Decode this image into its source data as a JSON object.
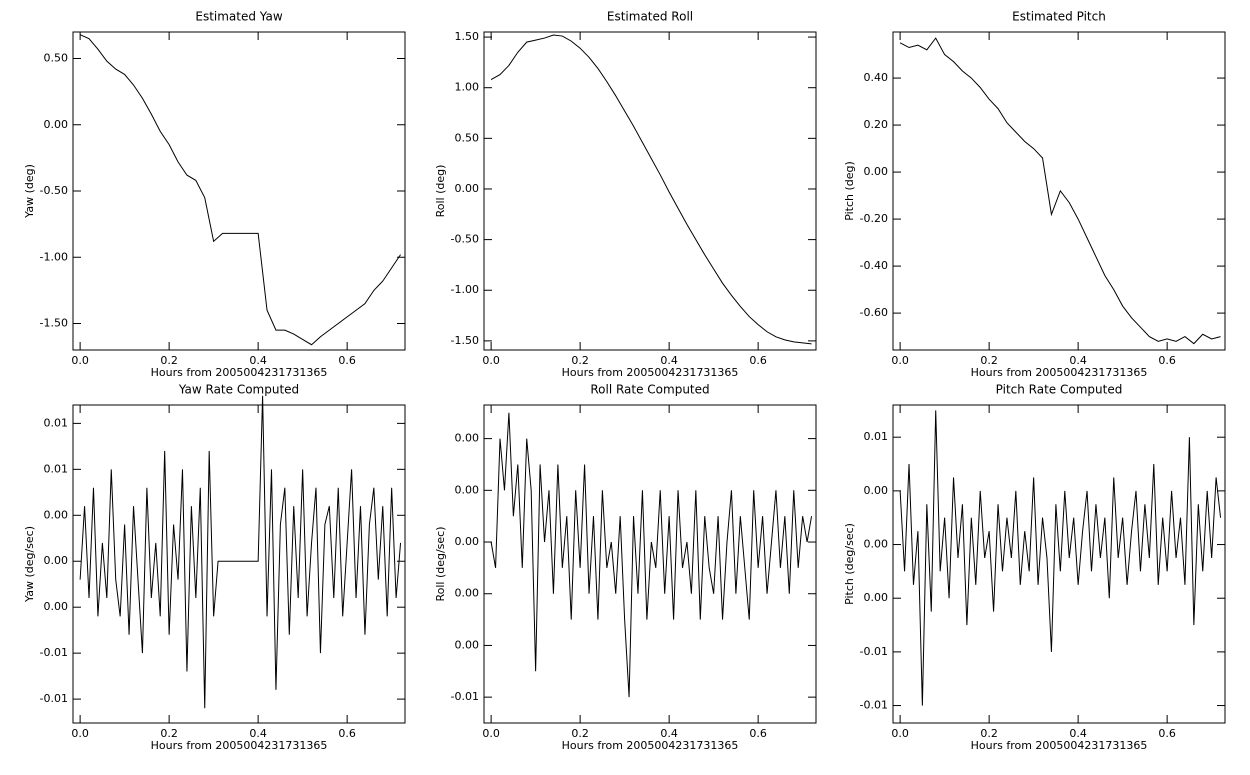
{
  "chart_data": [
    {
      "type": "line",
      "title": "Estimated Yaw",
      "x_label": "Hours from 2005004231731365",
      "y_label": "Yaw (deg)",
      "color": "#000000",
      "x": [
        0,
        0.02,
        0.04,
        0.06,
        0.08,
        0.1,
        0.12,
        0.14,
        0.16,
        0.18,
        0.2,
        0.22,
        0.24,
        0.26,
        0.28,
        0.3,
        0.32,
        0.34,
        0.36,
        0.38,
        0.4,
        0.42,
        0.44,
        0.46,
        0.48,
        0.5,
        0.52,
        0.54,
        0.56,
        0.58,
        0.6,
        0.62,
        0.64,
        0.66,
        0.68,
        0.7,
        0.72
      ],
      "values": [
        0.68,
        0.65,
        0.57,
        0.48,
        0.42,
        0.38,
        0.3,
        0.2,
        0.08,
        -0.05,
        -0.15,
        -0.28,
        -0.38,
        -0.42,
        -0.55,
        -0.88,
        -0.82,
        -0.82,
        -0.82,
        -0.82,
        -0.82,
        -1.4,
        -1.55,
        -1.55,
        -1.58,
        -1.62,
        -1.66,
        -1.6,
        -1.55,
        -1.5,
        -1.45,
        -1.4,
        -1.35,
        -1.25,
        -1.18,
        -1.08,
        -0.98
      ],
      "xlim": [
        -0.016,
        0.73
      ],
      "xticks": [
        {
          "value": 0,
          "label": "0.0"
        },
        0.2,
        0.4,
        0.6
      ],
      "ylim": [
        -1.7,
        0.7
      ],
      "yticks": [
        {
          "value": -1.5,
          "label": "-1.50"
        },
        {
          "value": -1,
          "label": "-1.00"
        },
        {
          "value": -0.5,
          "label": "-0.50"
        },
        {
          "value": 0,
          "label": "0.00"
        },
        {
          "value": 0.5,
          "label": "0.50"
        }
      ]
    },
    {
      "type": "line",
      "title": "Estimated Roll",
      "x_label": "Hours from 2005004231731365",
      "y_label": "Roll (deg)",
      "color": "#000000",
      "x": [
        0,
        0.02,
        0.04,
        0.06,
        0.08,
        0.1,
        0.12,
        0.14,
        0.16,
        0.18,
        0.2,
        0.22,
        0.24,
        0.26,
        0.28,
        0.3,
        0.32,
        0.34,
        0.36,
        0.38,
        0.4,
        0.42,
        0.44,
        0.46,
        0.48,
        0.5,
        0.52,
        0.54,
        0.56,
        0.58,
        0.6,
        0.62,
        0.64,
        0.66,
        0.68,
        0.7,
        0.72
      ],
      "values": [
        1.08,
        1.13,
        1.22,
        1.35,
        1.45,
        1.47,
        1.49,
        1.52,
        1.51,
        1.46,
        1.39,
        1.3,
        1.19,
        1.06,
        0.92,
        0.77,
        0.62,
        0.46,
        0.3,
        0.14,
        -0.03,
        -0.19,
        -0.35,
        -0.5,
        -0.65,
        -0.79,
        -0.93,
        -1.05,
        -1.16,
        -1.26,
        -1.34,
        -1.41,
        -1.46,
        -1.49,
        -1.51,
        -1.52,
        -1.53
      ],
      "xlim": [
        -0.016,
        0.73
      ],
      "xticks": [
        {
          "value": 0,
          "label": "0.0"
        },
        0.2,
        0.4,
        0.6
      ],
      "ylim": [
        -1.59,
        1.55
      ],
      "yticks": [
        {
          "value": -1.5,
          "label": "-1.50"
        },
        {
          "value": -1,
          "label": "-1.00"
        },
        {
          "value": -0.5,
          "label": "-0.50"
        },
        {
          "value": 0,
          "label": "0.00"
        },
        {
          "value": 0.5,
          "label": "0.50"
        },
        {
          "value": 1,
          "label": "1.00"
        },
        {
          "value": 1.5,
          "label": "1.50"
        }
      ]
    },
    {
      "type": "line",
      "title": "Estimated Pitch",
      "x_label": "Hours from 2005004231731365",
      "y_label": "Pitch (deg)",
      "color": "#000000",
      "x": [
        0,
        0.02,
        0.04,
        0.06,
        0.08,
        0.1,
        0.12,
        0.14,
        0.16,
        0.18,
        0.2,
        0.22,
        0.24,
        0.26,
        0.28,
        0.3,
        0.32,
        0.34,
        0.36,
        0.38,
        0.4,
        0.42,
        0.44,
        0.46,
        0.48,
        0.5,
        0.52,
        0.54,
        0.56,
        0.58,
        0.6,
        0.62,
        0.64,
        0.66,
        0.68,
        0.7,
        0.72
      ],
      "values": [
        0.55,
        0.53,
        0.54,
        0.52,
        0.57,
        0.5,
        0.47,
        0.43,
        0.4,
        0.36,
        0.31,
        0.27,
        0.21,
        0.17,
        0.13,
        0.1,
        0.06,
        -0.18,
        -0.08,
        -0.13,
        -0.2,
        -0.28,
        -0.36,
        -0.44,
        -0.5,
        -0.57,
        -0.62,
        -0.66,
        -0.7,
        -0.72,
        -0.71,
        -0.72,
        -0.7,
        -0.73,
        -0.69,
        -0.71,
        -0.7
      ],
      "xlim": [
        -0.016,
        0.73
      ],
      "xticks": [
        {
          "value": 0,
          "label": "0.0"
        },
        0.2,
        0.4,
        0.6
      ],
      "ylim": [
        -0.757,
        0.596
      ],
      "yticks": [
        {
          "value": -0.6,
          "label": "-0.60"
        },
        {
          "value": -0.4,
          "label": "-0.40"
        },
        {
          "value": -0.2,
          "label": "-0.20"
        },
        {
          "value": 0,
          "label": "0.00"
        },
        {
          "value": 0.2,
          "label": "0.20"
        },
        {
          "value": 0.4,
          "label": "0.40"
        }
      ]
    },
    {
      "type": "line",
      "title": "Yaw Rate Computed",
      "x_label": "Hours from 2005004231731365",
      "y_label": "Yaw (deg/sec)",
      "color": "#000000",
      "x": [
        0,
        0.01,
        0.02,
        0.03,
        0.04,
        0.05,
        0.06,
        0.07,
        0.08,
        0.09,
        0.1,
        0.11,
        0.12,
        0.13,
        0.14,
        0.15,
        0.16,
        0.17,
        0.18,
        0.19,
        0.2,
        0.21,
        0.22,
        0.23,
        0.24,
        0.25,
        0.26,
        0.27,
        0.28,
        0.29,
        0.3,
        0.31,
        0.32,
        0.33,
        0.34,
        0.35,
        0.36,
        0.37,
        0.38,
        0.39,
        0.4,
        0.41,
        0.42,
        0.43,
        0.44,
        0.45,
        0.46,
        0.47,
        0.48,
        0.49,
        0.5,
        0.51,
        0.52,
        0.53,
        0.54,
        0.55,
        0.56,
        0.57,
        0.58,
        0.59,
        0.6,
        0.61,
        0.62,
        0.63,
        0.64,
        0.65,
        0.66,
        0.67,
        0.68,
        0.69,
        0.7,
        0.71,
        0.72
      ],
      "values": [
        -0.001,
        0.003,
        -0.002,
        0.004,
        -0.003,
        0.001,
        -0.002,
        0.005,
        -0.001,
        -0.003,
        0.002,
        -0.004,
        0.003,
        -0.001,
        -0.005,
        0.004,
        -0.002,
        0.001,
        -0.003,
        0.006,
        -0.004,
        0.002,
        -0.001,
        0.005,
        -0.006,
        0.003,
        -0.002,
        0.004,
        -0.008,
        0.006,
        -0.003,
        0,
        0,
        0,
        0,
        0,
        0,
        0,
        0,
        0,
        0,
        0.009,
        -0.003,
        0.005,
        -0.007,
        0.002,
        0.004,
        -0.004,
        0.003,
        -0.002,
        0.005,
        -0.003,
        0.001,
        0.004,
        -0.005,
        0.002,
        0.003,
        -0.002,
        0.004,
        -0.003,
        0.001,
        0.005,
        -0.002,
        0.003,
        -0.004,
        0.002,
        0.004,
        -0.001,
        0.003,
        -0.003,
        0.004,
        -0.002,
        0.001
      ],
      "xlim": [
        -0.016,
        0.73
      ],
      "xticks": [
        {
          "value": 0,
          "label": "0.0"
        },
        0.2,
        0.4,
        0.6
      ],
      "ylim": [
        -0.0088,
        0.0085
      ],
      "yticks": [
        {
          "value": -0.0075,
          "label": "-0.01"
        },
        {
          "value": -0.005,
          "label": "-0.01"
        },
        {
          "value": -0.0025,
          "label": "0.00"
        },
        {
          "value": 0,
          "label": "0.00"
        },
        {
          "value": 0.0025,
          "label": "0.00"
        },
        {
          "value": 0.005,
          "label": "0.01"
        },
        {
          "value": 0.0075,
          "label": "0.01"
        }
      ]
    },
    {
      "type": "line",
      "title": "Roll Rate Computed",
      "x_label": "Hours from 2005004231731365",
      "y_label": "Roll (deg/sec)",
      "color": "#000000",
      "x": [
        0,
        0.01,
        0.02,
        0.03,
        0.04,
        0.05,
        0.06,
        0.07,
        0.08,
        0.09,
        0.1,
        0.11,
        0.12,
        0.13,
        0.14,
        0.15,
        0.16,
        0.17,
        0.18,
        0.19,
        0.2,
        0.21,
        0.22,
        0.23,
        0.24,
        0.25,
        0.26,
        0.27,
        0.28,
        0.29,
        0.3,
        0.31,
        0.32,
        0.33,
        0.34,
        0.35,
        0.36,
        0.37,
        0.38,
        0.39,
        0.4,
        0.41,
        0.42,
        0.43,
        0.44,
        0.45,
        0.46,
        0.47,
        0.48,
        0.49,
        0.5,
        0.51,
        0.52,
        0.53,
        0.54,
        0.55,
        0.56,
        0.57,
        0.58,
        0.59,
        0.6,
        0.61,
        0.62,
        0.63,
        0.64,
        0.65,
        0.66,
        0.67,
        0.68,
        0.69,
        0.7,
        0.71,
        0.72
      ],
      "values": [
        0,
        -0.001,
        0.004,
        0.002,
        0.005,
        0.001,
        0.003,
        -0.001,
        0.004,
        0.002,
        -0.005,
        0.003,
        0,
        0.002,
        -0.002,
        0.003,
        -0.001,
        0.001,
        -0.003,
        0.002,
        -0.001,
        0.003,
        -0.002,
        0.001,
        -0.003,
        0.002,
        -0.001,
        0,
        -0.002,
        0.001,
        -0.003,
        -0.006,
        0.001,
        -0.002,
        0.002,
        -0.003,
        0,
        -0.001,
        0.002,
        -0.002,
        0.001,
        -0.003,
        0.002,
        -0.001,
        0,
        -0.002,
        0.002,
        -0.003,
        0.001,
        -0.001,
        -0.002,
        0.001,
        -0.003,
        0,
        0.002,
        -0.002,
        0.001,
        -0.001,
        -0.003,
        0.002,
        -0.001,
        0.001,
        -0.002,
        0,
        0.002,
        -0.001,
        0.001,
        -0.002,
        0.002,
        -0.001,
        0.001,
        0,
        0.001
      ],
      "xlim": [
        -0.016,
        0.73
      ],
      "xticks": [
        {
          "value": 0,
          "label": "0.0"
        },
        0.2,
        0.4,
        0.6
      ],
      "ylim": [
        -0.007,
        0.0053
      ],
      "yticks": [
        {
          "value": -0.006,
          "label": "-0.01"
        },
        {
          "value": -0.004,
          "label": "0.00"
        },
        {
          "value": -0.002,
          "label": "0.00"
        },
        {
          "value": 0,
          "label": "0.00"
        },
        {
          "value": 0.002,
          "label": "0.00"
        },
        {
          "value": 0.004,
          "label": "0.00"
        }
      ]
    },
    {
      "type": "line",
      "title": "Pitch Rate Computed",
      "x_label": "Hours from 2005004231731365",
      "y_label": "Pitch (deg/sec)",
      "color": "#000000",
      "x": [
        0,
        0.01,
        0.02,
        0.03,
        0.04,
        0.05,
        0.06,
        0.07,
        0.08,
        0.09,
        0.1,
        0.11,
        0.12,
        0.13,
        0.14,
        0.15,
        0.16,
        0.17,
        0.18,
        0.19,
        0.2,
        0.21,
        0.22,
        0.23,
        0.24,
        0.25,
        0.26,
        0.27,
        0.28,
        0.29,
        0.3,
        0.31,
        0.32,
        0.33,
        0.34,
        0.35,
        0.36,
        0.37,
        0.38,
        0.39,
        0.4,
        0.41,
        0.42,
        0.43,
        0.44,
        0.45,
        0.46,
        0.47,
        0.48,
        0.49,
        0.5,
        0.51,
        0.52,
        0.53,
        0.54,
        0.55,
        0.56,
        0.57,
        0.58,
        0.59,
        0.6,
        0.61,
        0.62,
        0.63,
        0.64,
        0.65,
        0.66,
        0.67,
        0.68,
        0.69,
        0.7,
        0.71,
        0.72
      ],
      "values": [
        0.004,
        -0.002,
        0.006,
        -0.003,
        0.001,
        -0.012,
        0.003,
        -0.005,
        0.01,
        -0.002,
        0.002,
        -0.004,
        0.005,
        -0.001,
        0.003,
        -0.006,
        0.002,
        -0.003,
        0.004,
        -0.001,
        0.001,
        -0.005,
        0.003,
        -0.002,
        0.002,
        -0.001,
        0.004,
        -0.003,
        0.001,
        -0.002,
        0.005,
        -0.003,
        0.002,
        -0.001,
        -0.008,
        0.003,
        -0.002,
        0.004,
        -0.001,
        0.002,
        -0.003,
        0.001,
        0.004,
        -0.002,
        0.003,
        -0.001,
        0.002,
        -0.004,
        0.005,
        -0.001,
        0.002,
        -0.003,
        0.001,
        0.004,
        -0.002,
        0.003,
        -0.001,
        0.006,
        -0.003,
        0.002,
        -0.002,
        0.004,
        -0.001,
        0.002,
        -0.003,
        0.008,
        -0.006,
        0.003,
        -0.002,
        0.004,
        -0.001,
        0.005,
        0.002
      ],
      "xlim": [
        -0.016,
        0.73
      ],
      "xticks": [
        {
          "value": 0,
          "label": "0.0"
        },
        0.2,
        0.4,
        0.6
      ],
      "ylim": [
        -0.0133,
        0.0104
      ],
      "yticks": [
        {
          "value": -0.012,
          "label": "-0.01"
        },
        {
          "value": -0.008,
          "label": "-0.01"
        },
        {
          "value": -0.004,
          "label": "0.00"
        },
        {
          "value": 0,
          "label": "0.00"
        },
        {
          "value": 0.004,
          "label": "0.00"
        },
        {
          "value": 0.008,
          "label": "0.01"
        }
      ]
    }
  ]
}
